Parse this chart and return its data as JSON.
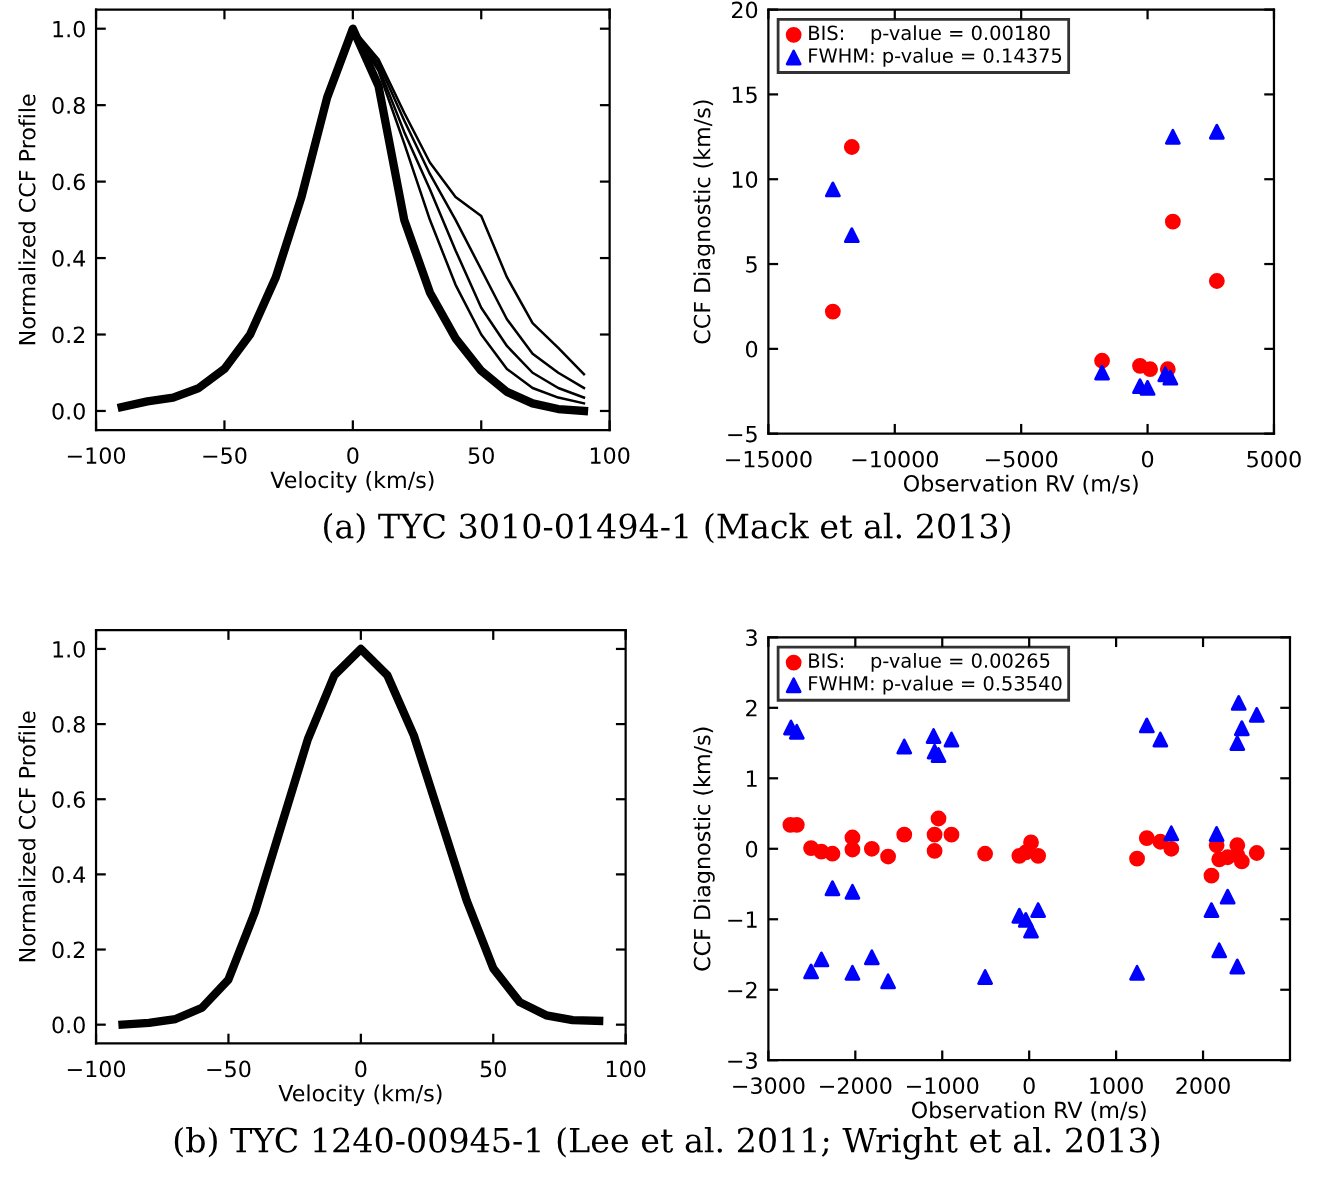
{
  "chart_data": [
    {
      "type": "line",
      "xlabel": "Velocity (km/s)",
      "ylabel": "Normalized CCF Profile",
      "xlim": [
        -100,
        100
      ],
      "xticks": [
        {
          "value": -100,
          "label": "−100"
        },
        {
          "value": -50,
          "label": "−50"
        },
        0,
        50,
        100
      ],
      "ylim": [
        -0.05,
        1.05
      ],
      "yticks": [
        {
          "value": 0,
          "label": "0.0"
        },
        {
          "value": 0.2,
          "label": "0.2"
        },
        {
          "value": 0.4,
          "label": "0.4"
        },
        {
          "value": 0.6,
          "label": "0.6"
        },
        {
          "value": 0.8,
          "label": "0.8"
        },
        {
          "value": 1.0,
          "label": "1.0"
        }
      ],
      "grid": false,
      "legend": false,
      "marker": "none",
      "line_style": "solid",
      "annotations": [
        "(a) TYC 3010-01494-1 (Mack et al. 2013)"
      ],
      "series": [
        {
          "color": "#000000",
          "x": [
            -90,
            -80,
            -70,
            -60,
            -50,
            -40,
            -30,
            -20,
            -10,
            0,
            10,
            20,
            30,
            40,
            50,
            60,
            70,
            80,
            90
          ],
          "values": [
            0.01,
            0.025,
            0.035,
            0.06,
            0.11,
            0.2,
            0.35,
            0.56,
            0.82,
            1.0,
            0.85,
            0.5,
            0.31,
            0.19,
            0.105,
            0.05,
            0.02,
            0.005,
            0.0
          ]
        },
        {
          "color": "#000000",
          "x": [
            0,
            10,
            20,
            30,
            40,
            50,
            60,
            70,
            80,
            90
          ],
          "values": [
            1.0,
            0.92,
            0.78,
            0.65,
            0.56,
            0.51,
            0.35,
            0.23,
            0.165,
            0.096
          ]
        },
        {
          "color": "#000000",
          "x": [
            0,
            10,
            20,
            30,
            40,
            50,
            60,
            70,
            80,
            90
          ],
          "values": [
            1.0,
            0.91,
            0.76,
            0.62,
            0.5,
            0.37,
            0.24,
            0.15,
            0.1,
            0.06
          ]
        },
        {
          "color": "#000000",
          "x": [
            0,
            10,
            20,
            30,
            40,
            50,
            60,
            70,
            80,
            90
          ],
          "values": [
            1.0,
            0.9,
            0.73,
            0.58,
            0.42,
            0.27,
            0.17,
            0.1,
            0.06,
            0.035
          ]
        },
        {
          "color": "#000000",
          "x": [
            0,
            10,
            20,
            30,
            40,
            50,
            60,
            70,
            80,
            90
          ],
          "values": [
            1.0,
            0.89,
            0.7,
            0.5,
            0.33,
            0.2,
            0.11,
            0.06,
            0.035,
            0.02
          ]
        }
      ]
    },
    {
      "type": "scatter",
      "xlabel": "Observation RV (m/s)",
      "ylabel": "CCF Diagnostic (km/s)",
      "xlim": [
        -15000,
        5000
      ],
      "xticks": [
        {
          "value": -15000,
          "label": "−15000"
        },
        {
          "value": -10000,
          "label": "−10000"
        },
        {
          "value": -5000,
          "label": "−5000"
        },
        0,
        5000
      ],
      "ylim": [
        -5,
        20
      ],
      "yticks": [
        {
          "value": -5,
          "label": "−5"
        },
        0,
        5,
        10,
        15,
        20
      ],
      "grid": false,
      "legend": "top left",
      "series": [
        {
          "name": "BIS:    p-value = 0.00180",
          "color": "#ff0000",
          "marker": "circle",
          "x": [
            -12450,
            -11700,
            -1800,
            -300,
            100,
            800,
            1000,
            2740
          ],
          "values": [
            2.2,
            11.9,
            -0.7,
            -1.0,
            -1.2,
            -1.2,
            7.5,
            4.0
          ]
        },
        {
          "name": "FWHM: p-value = 0.14375",
          "color": "#0000ff",
          "marker": "triangle",
          "x": [
            -12450,
            -11700,
            -1800,
            -300,
            0,
            700,
            900,
            1000,
            2740
          ],
          "values": [
            9.4,
            6.7,
            -1.4,
            -2.2,
            -2.3,
            -1.5,
            -1.7,
            12.5,
            12.8
          ]
        }
      ]
    },
    {
      "type": "line",
      "xlabel": "Velocity (km/s)",
      "ylabel": "Normalized CCF Profile",
      "xlim": [
        -100,
        100
      ],
      "xticks": [
        {
          "value": -100,
          "label": "−100"
        },
        {
          "value": -50,
          "label": "−50"
        },
        0,
        50,
        100
      ],
      "ylim": [
        -0.05,
        1.05
      ],
      "yticks": [
        {
          "value": 0,
          "label": "0.0"
        },
        {
          "value": 0.2,
          "label": "0.2"
        },
        {
          "value": 0.4,
          "label": "0.4"
        },
        {
          "value": 0.6,
          "label": "0.6"
        },
        {
          "value": 0.8,
          "label": "0.8"
        },
        {
          "value": 1.0,
          "label": "1.0"
        }
      ],
      "grid": false,
      "legend": false,
      "marker": "none",
      "line_style": "solid",
      "annotations": [
        "(b) TYC 1240-00945-1 (Lee et al. 2011; Wright et al. 2013)"
      ],
      "series": [
        {
          "color": "#000000",
          "x": [
            -90,
            -80,
            -70,
            -60,
            -50,
            -40,
            -30,
            -20,
            -10,
            0,
            10,
            20,
            30,
            40,
            50,
            60,
            70,
            80,
            90
          ],
          "values": [
            0.0,
            0.005,
            0.015,
            0.045,
            0.12,
            0.3,
            0.53,
            0.76,
            0.93,
            1.0,
            0.93,
            0.77,
            0.55,
            0.33,
            0.15,
            0.06,
            0.025,
            0.012,
            0.01
          ]
        }
      ]
    },
    {
      "type": "scatter",
      "xlabel": "Observation RV (m/s)",
      "ylabel": "CCF Diagnostic (km/s)",
      "xlim": [
        -3000,
        3000
      ],
      "xticks": [
        {
          "value": -3000,
          "label": "−3000"
        },
        {
          "value": -2000,
          "label": "−2000"
        },
        {
          "value": -1000,
          "label": "−1000"
        },
        0,
        1000,
        2000
      ],
      "ylim": [
        -3,
        3
      ],
      "yticks": [
        {
          "value": -3,
          "label": "−3"
        },
        {
          "value": -2,
          "label": "−2"
        },
        {
          "value": -1,
          "label": "−1"
        },
        0,
        1,
        2,
        3
      ],
      "grid": false,
      "legend": "top left",
      "series": [
        {
          "name": "BIS:    p-value = 0.00265",
          "color": "#ff0000",
          "marker": "circle",
          "x": [
            -2747,
            -2673,
            -2509,
            -2390,
            -2263,
            -2033,
            -2033,
            -1810,
            -1623,
            -1437,
            -1088,
            -1088,
            -1043,
            -894,
            -507,
            -113,
            -39,
            21,
            103,
            1241,
            1353,
            1509,
            1635,
            2097,
            2156,
            2186,
            2283,
            2394,
            2394,
            2446,
            2618
          ],
          "values": [
            0.34,
            0.34,
            0.01,
            -0.04,
            -0.07,
            0.16,
            -0.01,
            0.0,
            -0.11,
            0.2,
            0.2,
            -0.03,
            0.43,
            0.2,
            -0.07,
            -0.1,
            -0.05,
            0.09,
            -0.1,
            -0.14,
            0.15,
            0.1,
            0.0,
            -0.38,
            0.05,
            -0.15,
            -0.12,
            0.05,
            -0.09,
            -0.18,
            -0.06
          ]
        },
        {
          "name": "FWHM: p-value = 0.53540",
          "color": "#0000ff",
          "marker": "triangle",
          "x": [
            -2740,
            -2673,
            -2509,
            -2390,
            -2263,
            -2033,
            -2033,
            -1810,
            -1623,
            -1437,
            -1100,
            -1088,
            -1043,
            -894,
            -507,
            -113,
            -39,
            21,
            103,
            1241,
            1353,
            1509,
            1635,
            2097,
            2156,
            2186,
            2283,
            2394,
            2394,
            2410,
            2446,
            2618
          ],
          "values": [
            1.72,
            1.66,
            -1.74,
            -1.57,
            -0.56,
            -1.76,
            -0.61,
            -1.54,
            -1.88,
            1.45,
            1.6,
            1.38,
            1.33,
            1.55,
            -1.82,
            -0.95,
            -1.01,
            -1.16,
            -0.87,
            -1.76,
            1.75,
            1.55,
            0.22,
            -0.87,
            0.21,
            -1.44,
            -0.68,
            -1.67,
            1.5,
            2.07,
            1.71,
            1.9
          ]
        }
      ]
    }
  ]
}
